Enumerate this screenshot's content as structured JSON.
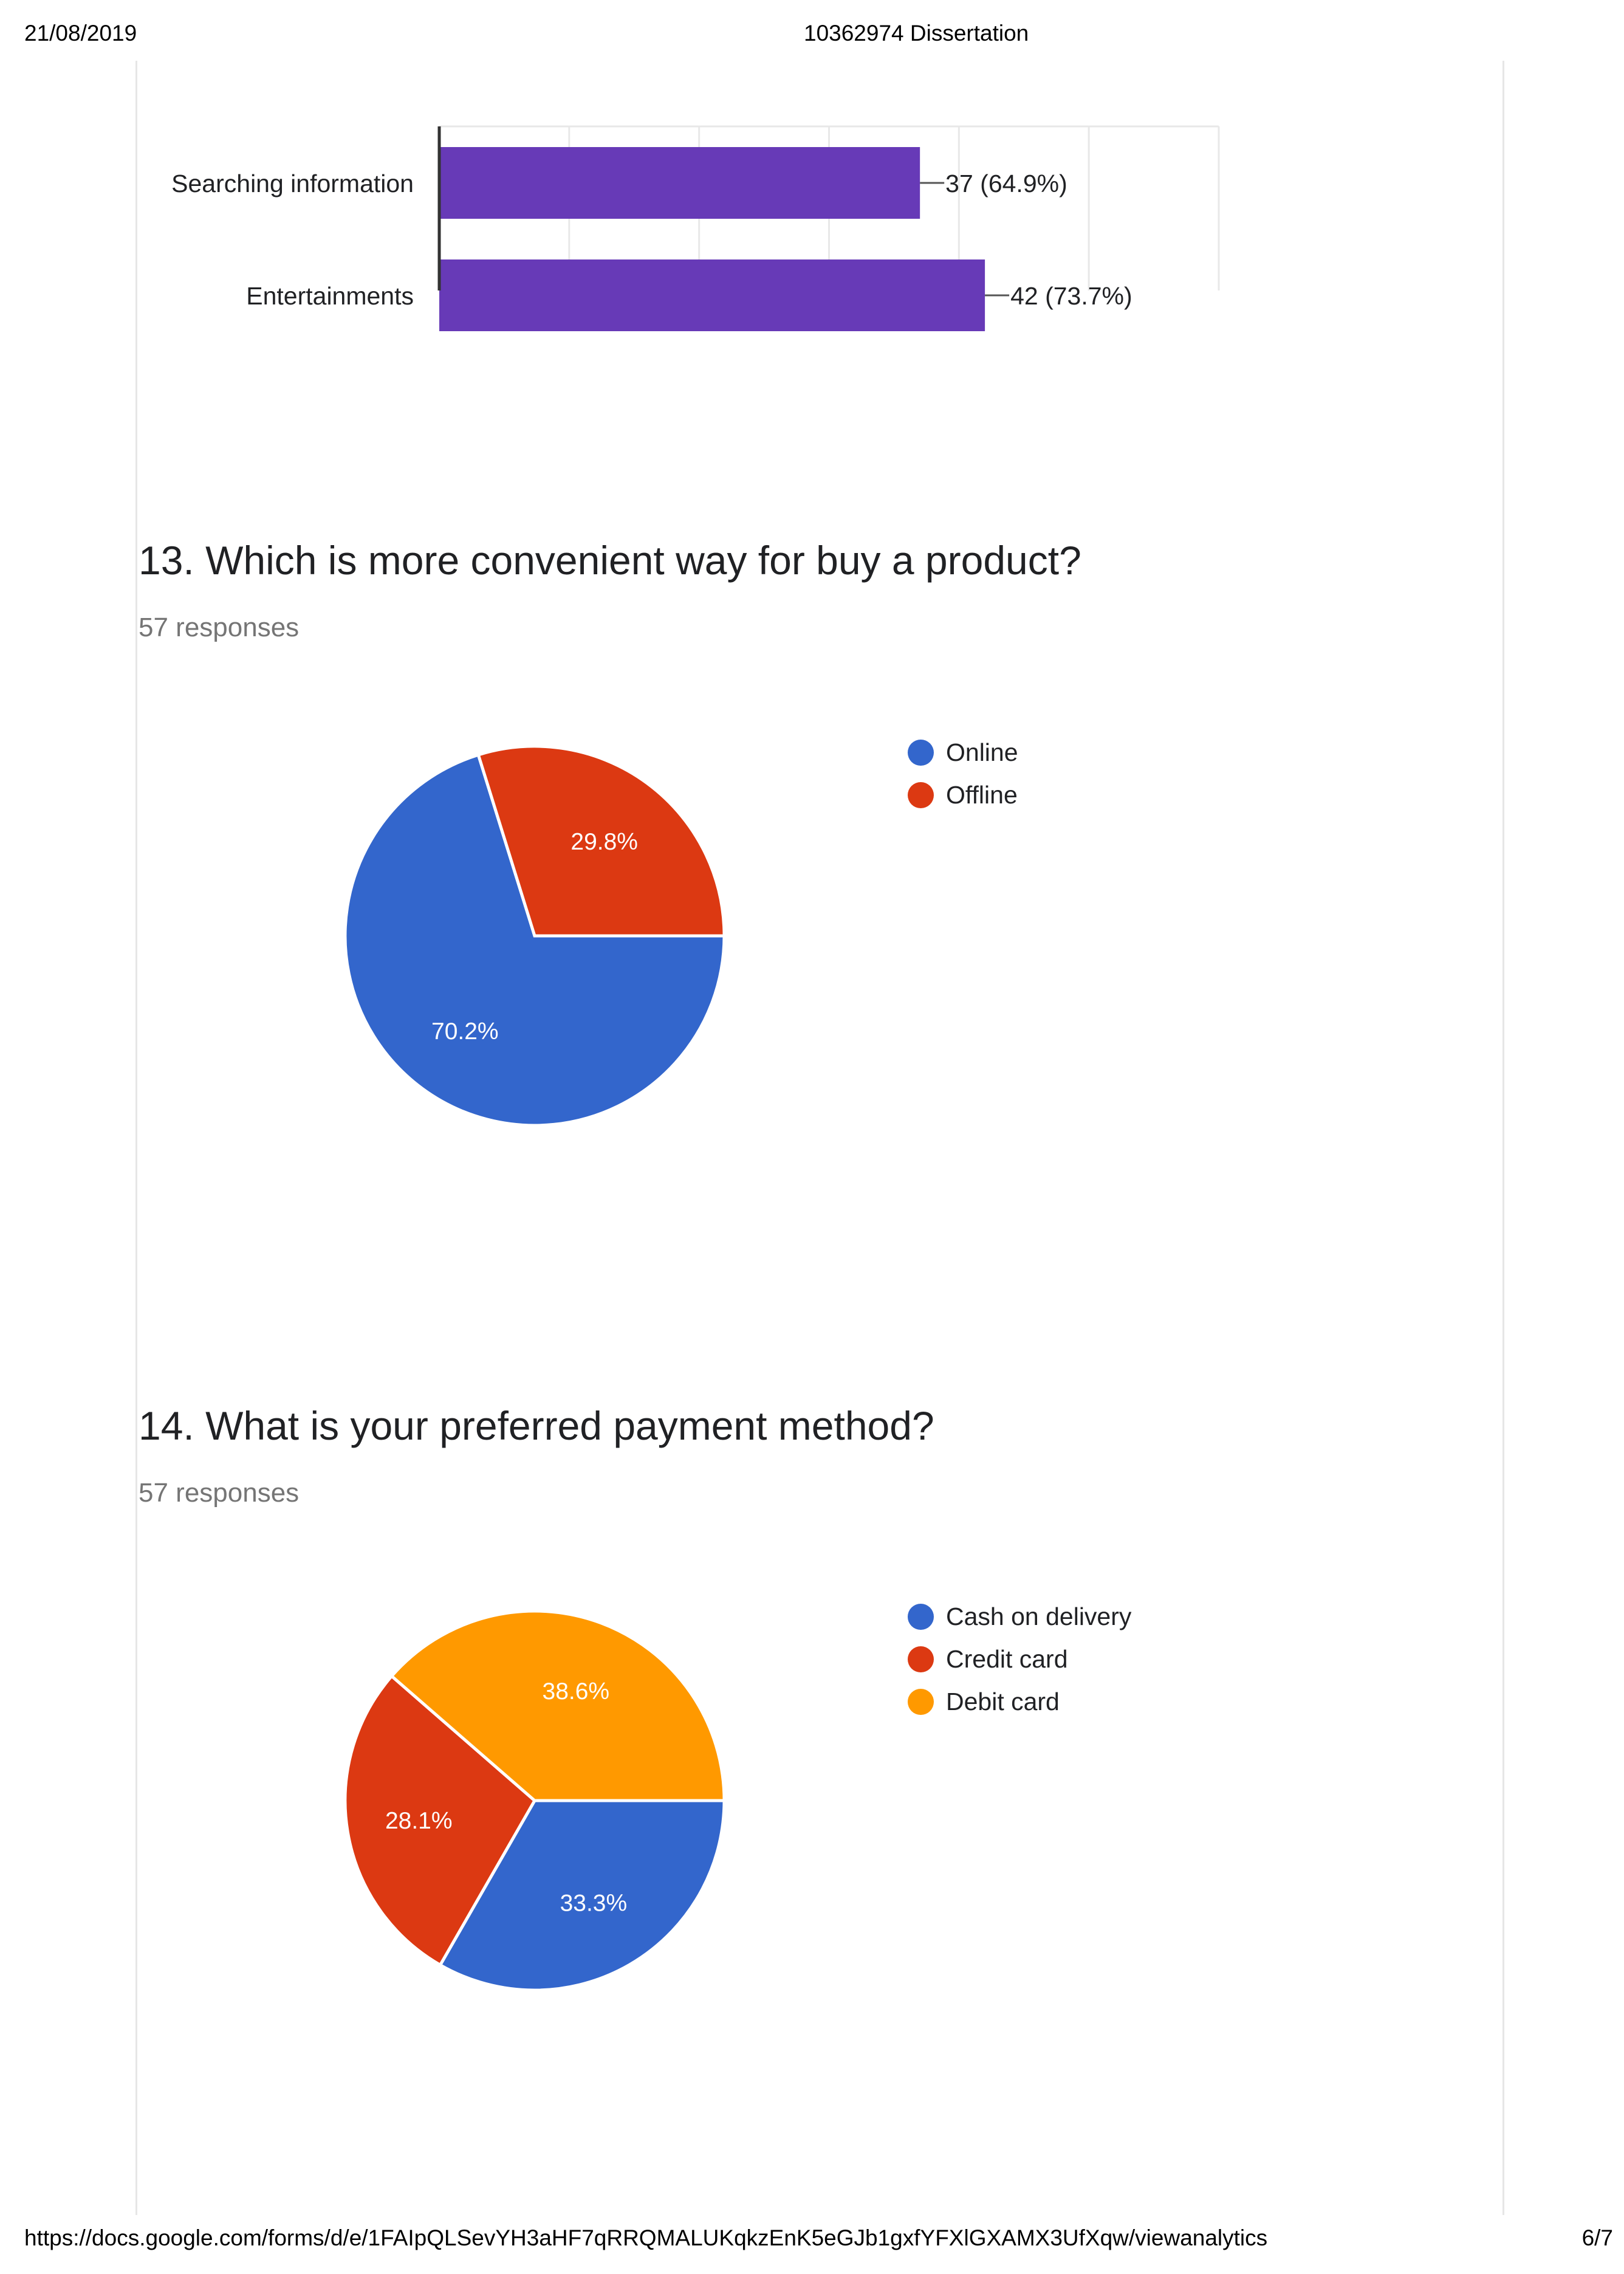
{
  "header": {
    "date": "21/08/2019",
    "title": "10362974 Dissertation"
  },
  "footer": {
    "url": "https://docs.google.com/forms/d/e/1FAIpQLSevYH3aHF7qRRQMALUKqkzEnK5eGJb1gxfYFXlGXAMX3UfXqw/viewanalytics",
    "page": "6/7"
  },
  "colors": {
    "blue": "#3366cc",
    "red": "#dc3912",
    "orange": "#ff9900",
    "purple": "#673ab7"
  },
  "questions": [
    {
      "title": "13. Which is more convenient way for buy a product?",
      "responses": "57 responses"
    },
    {
      "title": "14. What is your preferred payment method?",
      "responses": "57 responses"
    }
  ],
  "chart_data": [
    {
      "type": "bar",
      "orientation": "horizontal",
      "categories": [
        "Searching information",
        "Entertainments"
      ],
      "values": [
        37,
        42
      ],
      "labels": [
        "37 (64.9%)",
        "42 (73.7%)"
      ],
      "xlim": [
        0,
        60
      ],
      "grid": true,
      "color": "#673ab7"
    },
    {
      "type": "pie",
      "categories": [
        "Online",
        "Offline"
      ],
      "values": [
        70.2,
        29.8
      ],
      "labels": [
        "70.2%",
        "29.8%"
      ],
      "colors": [
        "#3366cc",
        "#dc3912"
      ],
      "legend": "right"
    },
    {
      "type": "pie",
      "categories": [
        "Cash on delivery",
        "Credit card",
        "Debit card"
      ],
      "values": [
        33.3,
        28.1,
        38.6
      ],
      "labels": [
        "33.3%",
        "28.1%",
        "38.6%"
      ],
      "colors": [
        "#3366cc",
        "#dc3912",
        "#ff9900"
      ],
      "legend": "right"
    }
  ]
}
